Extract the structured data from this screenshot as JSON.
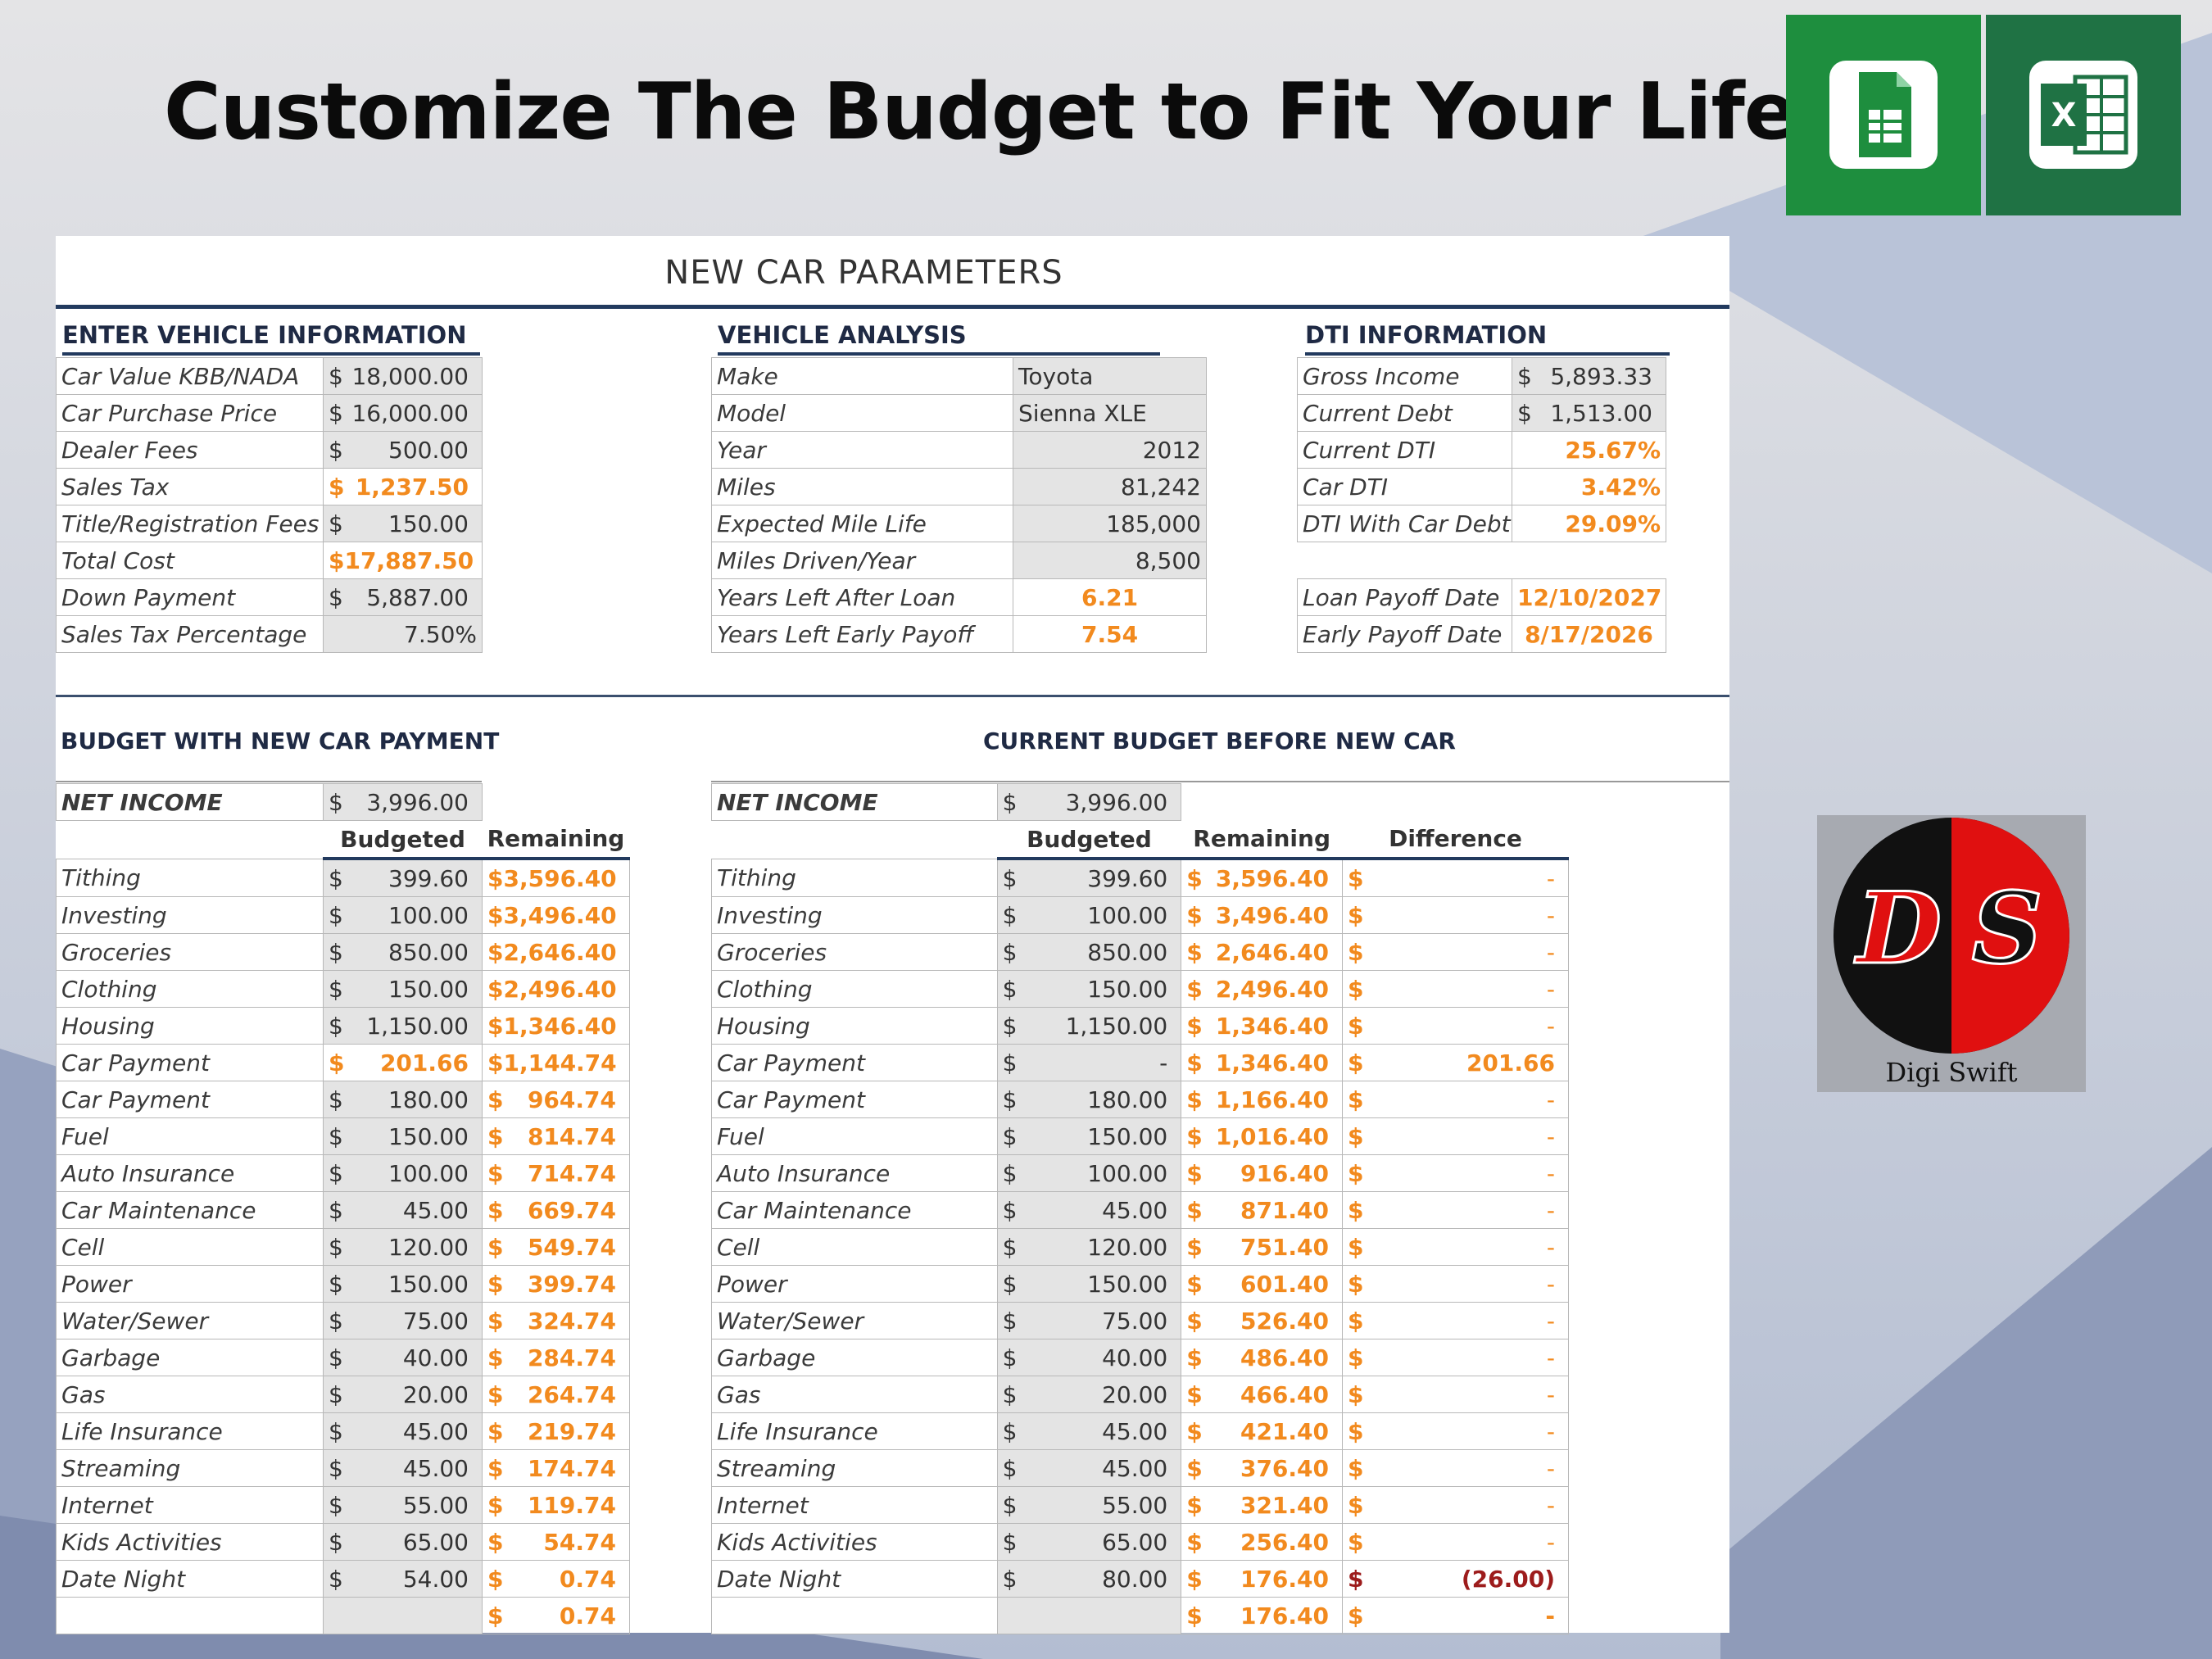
{
  "headline": "Customize The Budget to Fit Your Life",
  "sheet_title": "NEW CAR PARAMETERS",
  "vehicle_info": {
    "title": "ENTER VEHICLE INFORMATION",
    "rows": [
      {
        "label": "Car Value KBB/NADA",
        "cur": "$",
        "amt": "18,000.00",
        "style": "val"
      },
      {
        "label": "Car Purchase Price",
        "cur": "$",
        "amt": "16,000.00",
        "style": "val"
      },
      {
        "label": "Dealer Fees",
        "cur": "$",
        "amt": "500.00",
        "style": "val"
      },
      {
        "label": "Sales Tax",
        "cur": "$",
        "amt": "1,237.50",
        "style": "o"
      },
      {
        "label": "Title/Registration Fees",
        "cur": "$",
        "amt": "150.00",
        "style": "val"
      },
      {
        "label": "Total Cost",
        "cur": "$",
        "amt": "17,887.50",
        "style": "o"
      },
      {
        "label": "Down Payment",
        "cur": "$",
        "amt": "5,887.00",
        "style": "val"
      },
      {
        "label": "Sales Tax Percentage",
        "cur": "",
        "amt": "7.50%",
        "style": "val"
      }
    ]
  },
  "vehicle_analysis": {
    "title": "VEHICLE ANALYSIS",
    "rows": [
      {
        "label": "Make",
        "value": "Toyota",
        "align": "left",
        "style": "val"
      },
      {
        "label": "Model",
        "value": "Sienna XLE",
        "align": "left",
        "style": "val"
      },
      {
        "label": "Year",
        "value": "2012",
        "align": "right",
        "style": "val"
      },
      {
        "label": "Miles",
        "value": "81,242",
        "align": "right",
        "style": "val"
      },
      {
        "label": "Expected Mile Life",
        "value": "185,000",
        "align": "right",
        "style": "val"
      },
      {
        "label": "Miles Driven/Year",
        "value": "8,500",
        "align": "right",
        "style": "val"
      },
      {
        "label": "Years Left After Loan",
        "value": "6.21",
        "align": "center",
        "style": "o"
      },
      {
        "label": "Years Left Early Payoff",
        "value": "7.54",
        "align": "center",
        "style": "o"
      }
    ]
  },
  "dti": {
    "title": "DTI INFORMATION",
    "rows": [
      {
        "label": "Gross Income",
        "cur": "$",
        "amt": "5,893.33",
        "style": "val"
      },
      {
        "label": "Current Debt",
        "cur": "$",
        "amt": "1,513.00",
        "style": "val"
      },
      {
        "label": "Current DTI",
        "cur": "",
        "amt": "25.67%",
        "style": "o"
      },
      {
        "label": "Car DTI",
        "cur": "",
        "amt": "3.42%",
        "style": "o"
      },
      {
        "label": "DTI With Car Debt",
        "cur": "",
        "amt": "29.09%",
        "style": "o"
      }
    ],
    "dates": [
      {
        "label": "Loan Payoff Date",
        "value": "12/10/2027"
      },
      {
        "label": "Early Payoff Date",
        "value": "8/17/2026"
      }
    ]
  },
  "budget_new": {
    "title": "BUDGET WITH NEW CAR PAYMENT",
    "net_income_label": "NET INCOME",
    "net_income": "3,996.00",
    "col_budgeted": "Budgeted",
    "col_remaining": "Remaining",
    "rows": [
      {
        "label": "Tithing",
        "budget": "399.60",
        "remaining": "3,596.40"
      },
      {
        "label": "Investing",
        "budget": "100.00",
        "remaining": "3,496.40"
      },
      {
        "label": "Groceries",
        "budget": "850.00",
        "remaining": "2,646.40"
      },
      {
        "label": "Clothing",
        "budget": "150.00",
        "remaining": "2,496.40"
      },
      {
        "label": "Housing",
        "budget": "1,150.00",
        "remaining": "1,346.40"
      },
      {
        "label": "Car Payment",
        "budget": "201.66",
        "remaining": "1,144.74",
        "budget_orange": true
      },
      {
        "label": "Car Payment",
        "budget": "180.00",
        "remaining": "964.74"
      },
      {
        "label": "Fuel",
        "budget": "150.00",
        "remaining": "814.74"
      },
      {
        "label": "Auto Insurance",
        "budget": "100.00",
        "remaining": "714.74"
      },
      {
        "label": "Car Maintenance",
        "budget": "45.00",
        "remaining": "669.74"
      },
      {
        "label": "Cell",
        "budget": "120.00",
        "remaining": "549.74"
      },
      {
        "label": "Power",
        "budget": "150.00",
        "remaining": "399.74"
      },
      {
        "label": "Water/Sewer",
        "budget": "75.00",
        "remaining": "324.74"
      },
      {
        "label": "Garbage",
        "budget": "40.00",
        "remaining": "284.74"
      },
      {
        "label": "Gas",
        "budget": "20.00",
        "remaining": "264.74"
      },
      {
        "label": "Life Insurance",
        "budget": "45.00",
        "remaining": "219.74"
      },
      {
        "label": "Streaming",
        "budget": "45.00",
        "remaining": "174.74"
      },
      {
        "label": "Internet",
        "budget": "55.00",
        "remaining": "119.74"
      },
      {
        "label": "Kids Activities",
        "budget": "65.00",
        "remaining": "54.74"
      },
      {
        "label": "Date Night",
        "budget": "54.00",
        "remaining": "0.74"
      }
    ],
    "partial_remaining": "0.74"
  },
  "budget_current": {
    "title": "CURRENT BUDGET BEFORE NEW CAR",
    "net_income_label": "NET INCOME",
    "net_income": "3,996.00",
    "col_budgeted": "Budgeted",
    "col_remaining": "Remaining",
    "col_difference": "Difference",
    "rows": [
      {
        "label": "Tithing",
        "budget": "399.60",
        "remaining": "3,596.40",
        "diff": "-"
      },
      {
        "label": "Investing",
        "budget": "100.00",
        "remaining": "3,496.40",
        "diff": "-"
      },
      {
        "label": "Groceries",
        "budget": "850.00",
        "remaining": "2,646.40",
        "diff": "-"
      },
      {
        "label": "Clothing",
        "budget": "150.00",
        "remaining": "2,496.40",
        "diff": "-"
      },
      {
        "label": "Housing",
        "budget": "1,150.00",
        "remaining": "1,346.40",
        "diff": "-"
      },
      {
        "label": "Car Payment",
        "budget": "-",
        "remaining": "1,346.40",
        "diff": "201.66"
      },
      {
        "label": "Car Payment",
        "budget": "180.00",
        "remaining": "1,166.40",
        "diff": "-"
      },
      {
        "label": "Fuel",
        "budget": "150.00",
        "remaining": "1,016.40",
        "diff": "-"
      },
      {
        "label": "Auto Insurance",
        "budget": "100.00",
        "remaining": "916.40",
        "diff": "-"
      },
      {
        "label": "Car Maintenance",
        "budget": "45.00",
        "remaining": "871.40",
        "diff": "-"
      },
      {
        "label": "Cell",
        "budget": "120.00",
        "remaining": "751.40",
        "diff": "-"
      },
      {
        "label": "Power",
        "budget": "150.00",
        "remaining": "601.40",
        "diff": "-"
      },
      {
        "label": "Water/Sewer",
        "budget": "75.00",
        "remaining": "526.40",
        "diff": "-"
      },
      {
        "label": "Garbage",
        "budget": "40.00",
        "remaining": "486.40",
        "diff": "-"
      },
      {
        "label": "Gas",
        "budget": "20.00",
        "remaining": "466.40",
        "diff": "-"
      },
      {
        "label": "Life Insurance",
        "budget": "45.00",
        "remaining": "421.40",
        "diff": "-"
      },
      {
        "label": "Streaming",
        "budget": "45.00",
        "remaining": "376.40",
        "diff": "-"
      },
      {
        "label": "Internet",
        "budget": "55.00",
        "remaining": "321.40",
        "diff": "-"
      },
      {
        "label": "Kids Activities",
        "budget": "65.00",
        "remaining": "256.40",
        "diff": "-"
      },
      {
        "label": "Date Night",
        "budget": "80.00",
        "remaining": "176.40",
        "diff": "(26.00)",
        "diff_red": true
      }
    ],
    "partial_remaining": "176.40",
    "partial_diff": "-"
  },
  "currency": "$",
  "logo": {
    "letters_left": "D",
    "letters_right": "S",
    "name": "Digi Swift"
  },
  "icons": {
    "sheets": "google-sheets-icon",
    "excel": "excel-icon",
    "excel_letter": "X"
  },
  "colors": {
    "orange": "#f28a1e",
    "navy": "#223a5e",
    "red": "#9d1c1c",
    "sheets_green": "#1e8e3e",
    "excel_green": "#1f7244"
  }
}
